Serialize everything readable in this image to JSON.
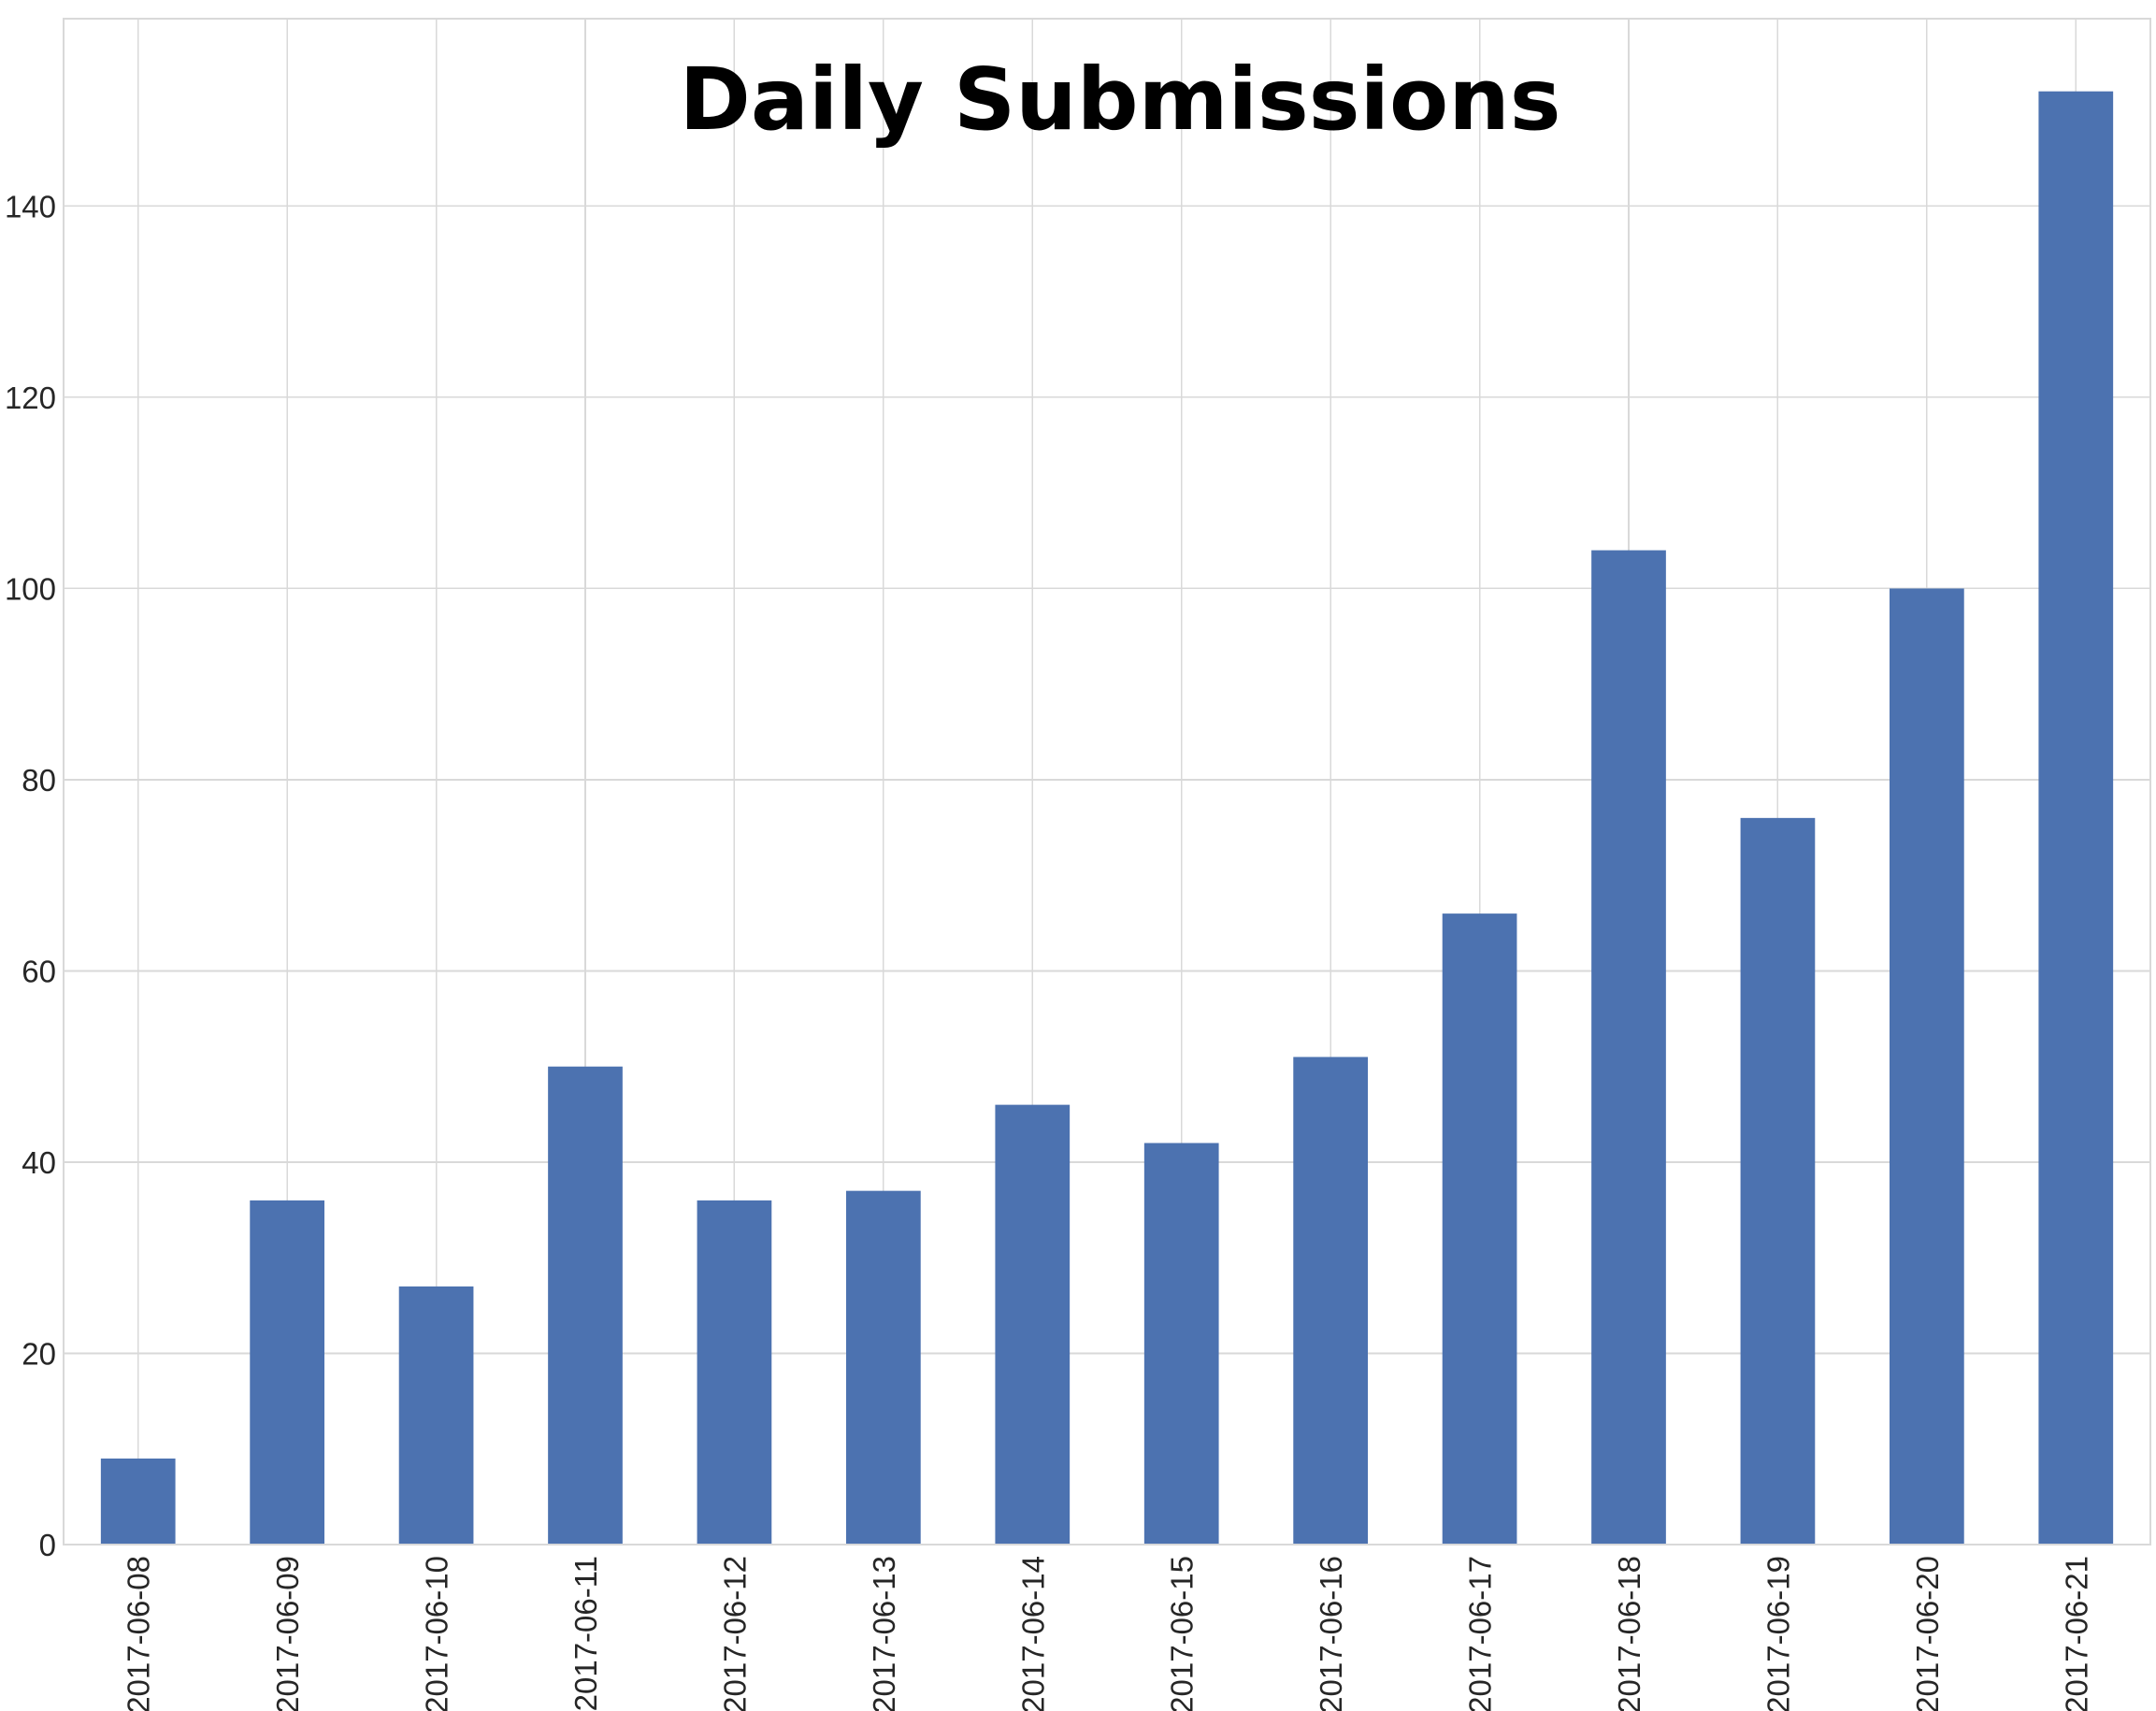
{
  "chart_data": {
    "type": "bar",
    "title": "Daily Submissions",
    "xlabel": "",
    "ylabel": "",
    "categories": [
      "2017-06-08",
      "2017-06-09",
      "2017-06-10",
      "2017-06-11",
      "2017-06-12",
      "2017-06-13",
      "2017-06-14",
      "2017-06-15",
      "2017-06-16",
      "2017-06-17",
      "2017-06-18",
      "2017-06-19",
      "2017-06-20",
      "2017-06-21"
    ],
    "values": [
      9,
      36,
      27,
      50,
      36,
      37,
      46,
      42,
      51,
      66,
      104,
      76,
      100,
      152
    ],
    "ylim": [
      0,
      159.6
    ],
    "yticks": [
      0,
      20,
      40,
      60,
      80,
      100,
      120,
      140
    ],
    "grid": true,
    "legend": "none",
    "bar_color": "#4c72b0"
  }
}
